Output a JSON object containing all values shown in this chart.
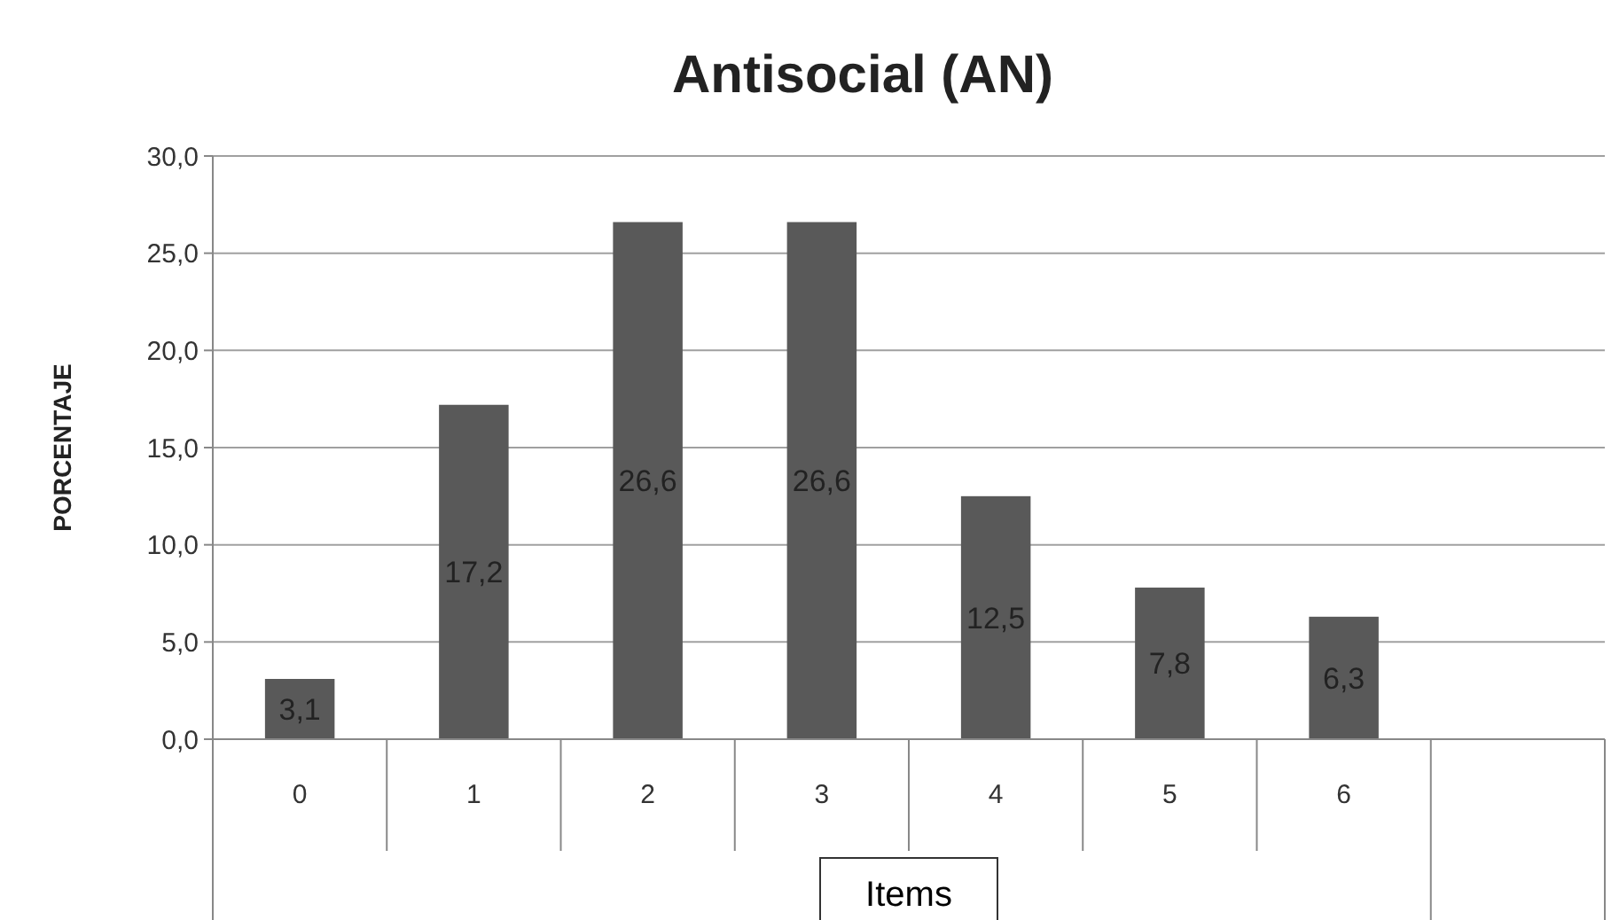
{
  "chart_data": {
    "type": "bar",
    "title": "Antisocial (AN)",
    "xlabel": "Items",
    "ylabel": "PORCENTAJE",
    "categories": [
      "0",
      "1",
      "2",
      "3",
      "4",
      "5",
      "6",
      null
    ],
    "values": [
      3.1,
      17.2,
      26.6,
      26.6,
      12.5,
      7.8,
      6.3,
      null
    ],
    "value_labels": [
      "3,1",
      "17,2",
      "26,6",
      "26,6",
      "12,5",
      "7,8",
      "6,3",
      null
    ],
    "color": "#595959",
    "ylim": [
      0,
      30
    ],
    "yticks": [
      {
        "value": 0,
        "label": "0,0"
      },
      {
        "value": 5,
        "label": "5,0"
      },
      {
        "value": 10,
        "label": "10,0"
      },
      {
        "value": 15,
        "label": "15,0"
      },
      {
        "value": 20,
        "label": "20,0"
      },
      {
        "value": 25,
        "label": "25,0"
      },
      {
        "value": 30,
        "label": "30,0"
      }
    ],
    "grid": "y"
  }
}
